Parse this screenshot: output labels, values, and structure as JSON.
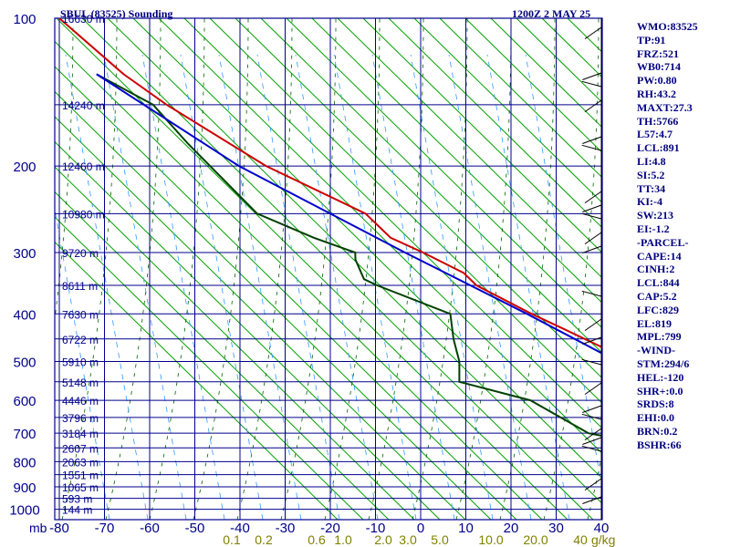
{
  "header": {
    "title": "SBUL (83525) Sounding",
    "datetime": "1200Z  2 MAY 25"
  },
  "colors": {
    "frame": "#00008b",
    "dry_adiabat": "#00a000",
    "moist_adiabat": "#006400",
    "mixing_ratio": "#3399ff",
    "temperature": "#cc0000",
    "dewpoint": "#004000",
    "parcel": "#0000cc",
    "mixing_ratio_labels": "#808000",
    "wind_barbs": "#000000"
  },
  "stats": [
    "WMO:83525",
    "TP:91",
    "FRZ:521",
    "WB0:714",
    "PW:0.80",
    "RH:43.2",
    "MAXT:27.3",
    "TH:5766",
    "L57:4.7",
    "LCL:891",
    "LI:4.8",
    "SI:5.2",
    "TT:34",
    "KI:-4",
    "SW:213",
    "EI:-1.2",
    "-PARCEL-",
    "CAPE:14",
    "CINH:2",
    "LCL:844",
    "CAP:5.2",
    "LFC:829",
    "EL:819",
    "MPL:799",
    "-WIND-",
    "STM:294/6",
    "HEL:-120",
    "SHR+:0.0",
    "SRDS:8",
    "EHI:0.0",
    "BRN:0.2",
    "BSHR:66"
  ],
  "chart_data": {
    "type": "line",
    "title": "SBUL (83525) Sounding",
    "xlabel": "",
    "ylabel": "mb",
    "ylabel_unit": "mb",
    "x_ticks": [
      "-80",
      "-70",
      "-60",
      "-50",
      "-40",
      "-30",
      "-20",
      "-10",
      "0",
      "10",
      "20",
      "30",
      "40"
    ],
    "y_ticks": [
      "100",
      "200",
      "300",
      "400",
      "500",
      "600",
      "700",
      "800",
      "900",
      "1000"
    ],
    "mixing_ratio_ticks": [
      "0.1",
      "0.2",
      "0.6",
      "1.0",
      "2.0",
      "3.0",
      "5.0",
      "10.0",
      "20.0",
      "40"
    ],
    "mixing_ratio_unit": "g/kg",
    "height_labels": [
      {
        "p": 100,
        "label": "16630 m"
      },
      {
        "p": 150,
        "label": "14240 m"
      },
      {
        "p": 200,
        "label": "12460 m"
      },
      {
        "p": 250,
        "label": "10980 m"
      },
      {
        "p": 300,
        "label": "9720 m"
      },
      {
        "p": 350,
        "label": "8611 m"
      },
      {
        "p": 400,
        "label": "7630 m"
      },
      {
        "p": 450,
        "label": "6722 m"
      },
      {
        "p": 500,
        "label": "5910 m"
      },
      {
        "p": 550,
        "label": "5148 m"
      },
      {
        "p": 600,
        "label": "4446 m"
      },
      {
        "p": 650,
        "label": "3796 m"
      },
      {
        "p": 700,
        "label": "3184 m"
      },
      {
        "p": 750,
        "label": "2607 m"
      },
      {
        "p": 800,
        "label": "2063 m"
      },
      {
        "p": 850,
        "label": "1551 m"
      },
      {
        "p": 900,
        "label": "1065 m"
      },
      {
        "p": 950,
        "label": "593 m"
      },
      {
        "p": 1000,
        "label": "144 m"
      }
    ],
    "series": [
      {
        "name": "temperature",
        "points": [
          {
            "p": 100,
            "t": -80
          },
          {
            "p": 130,
            "t": -74
          },
          {
            "p": 150,
            "t": -69
          },
          {
            "p": 200,
            "t": -56
          },
          {
            "p": 250,
            "t": -41
          },
          {
            "p": 280,
            "t": -39
          },
          {
            "p": 300,
            "t": -34
          },
          {
            "p": 330,
            "t": -28
          },
          {
            "p": 350,
            "t": -27
          },
          {
            "p": 400,
            "t": -19
          },
          {
            "p": 430,
            "t": -14
          },
          {
            "p": 470,
            "t": -8
          },
          {
            "p": 500,
            "t": -2
          },
          {
            "p": 550,
            "t": -2
          },
          {
            "p": 600,
            "t": 1
          },
          {
            "p": 700,
            "t": 11
          },
          {
            "p": 770,
            "t": 12
          },
          {
            "p": 800,
            "t": 14
          },
          {
            "p": 850,
            "t": 13
          },
          {
            "p": 900,
            "t": 13
          }
        ]
      },
      {
        "name": "dewpoint",
        "points": [
          {
            "p": 130,
            "t": -80
          },
          {
            "p": 150,
            "t": -72
          },
          {
            "p": 180,
            "t": -70
          },
          {
            "p": 250,
            "t": -65
          },
          {
            "p": 280,
            "t": -56
          },
          {
            "p": 300,
            "t": -49
          },
          {
            "p": 310,
            "t": -50
          },
          {
            "p": 340,
            "t": -51
          },
          {
            "p": 350,
            "t": -49
          },
          {
            "p": 400,
            "t": -37
          },
          {
            "p": 450,
            "t": -40
          },
          {
            "p": 500,
            "t": -42
          },
          {
            "p": 550,
            "t": -45
          },
          {
            "p": 600,
            "t": -32
          },
          {
            "p": 700,
            "t": -24
          },
          {
            "p": 720,
            "t": -18
          },
          {
            "p": 780,
            "t": -3
          },
          {
            "p": 820,
            "t": 3
          },
          {
            "p": 850,
            "t": 10
          },
          {
            "p": 900,
            "t": 14
          }
        ]
      },
      {
        "name": "parcel",
        "points": [
          {
            "p": 130,
            "t": -80
          },
          {
            "p": 200,
            "t": -62
          },
          {
            "p": 300,
            "t": -38
          },
          {
            "p": 400,
            "t": -20
          },
          {
            "p": 500,
            "t": -7
          },
          {
            "p": 600,
            "t": 1
          },
          {
            "p": 700,
            "t": 8
          },
          {
            "p": 800,
            "t": 12
          },
          {
            "p": 850,
            "t": 15
          },
          {
            "p": 900,
            "t": 17
          }
        ]
      }
    ]
  }
}
